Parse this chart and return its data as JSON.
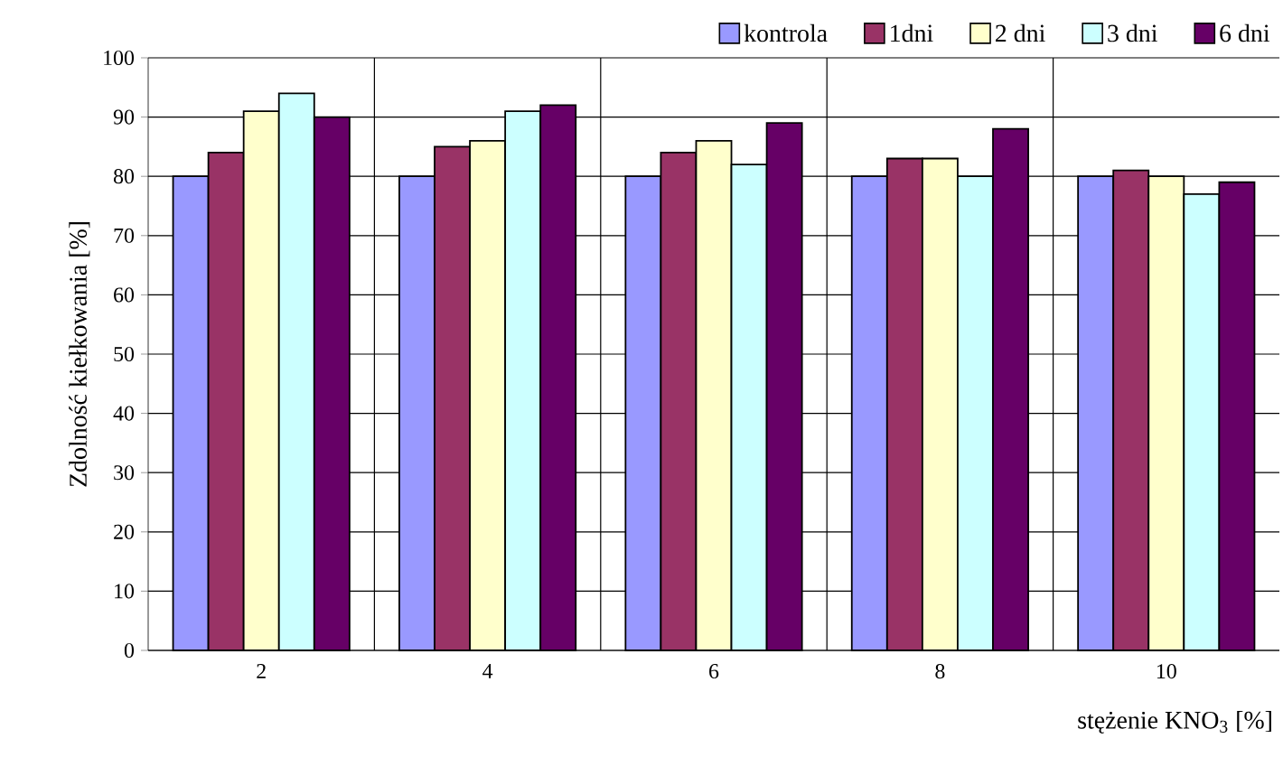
{
  "chart_data": {
    "type": "bar",
    "xlabel": "stężenie KNO$_{3}$ [%]",
    "ylabel": "Zdolność kiełkowania [%]",
    "categories": [
      "2",
      "4",
      "6",
      "8",
      "10"
    ],
    "series": [
      {
        "name": "kontrola",
        "color": "#9999ff",
        "values": [
          80,
          80,
          80,
          80,
          80
        ]
      },
      {
        "name": "1dni",
        "color": "#993366",
        "values": [
          84,
          85,
          84,
          83,
          81
        ]
      },
      {
        "name": "2 dni",
        "color": "#ffffcc",
        "values": [
          91,
          86,
          86,
          83,
          80
        ]
      },
      {
        "name": "3 dni",
        "color": "#ccffff",
        "values": [
          94,
          91,
          82,
          80,
          77
        ]
      },
      {
        "name": "6 dni",
        "color": "#660066",
        "values": [
          90,
          92,
          89,
          88,
          79
        ]
      }
    ],
    "ylim": [
      0,
      100
    ],
    "yticks": [
      0,
      10,
      20,
      30,
      40,
      50,
      60,
      70,
      80,
      90,
      100
    ],
    "grid": true,
    "legend": "top right"
  }
}
